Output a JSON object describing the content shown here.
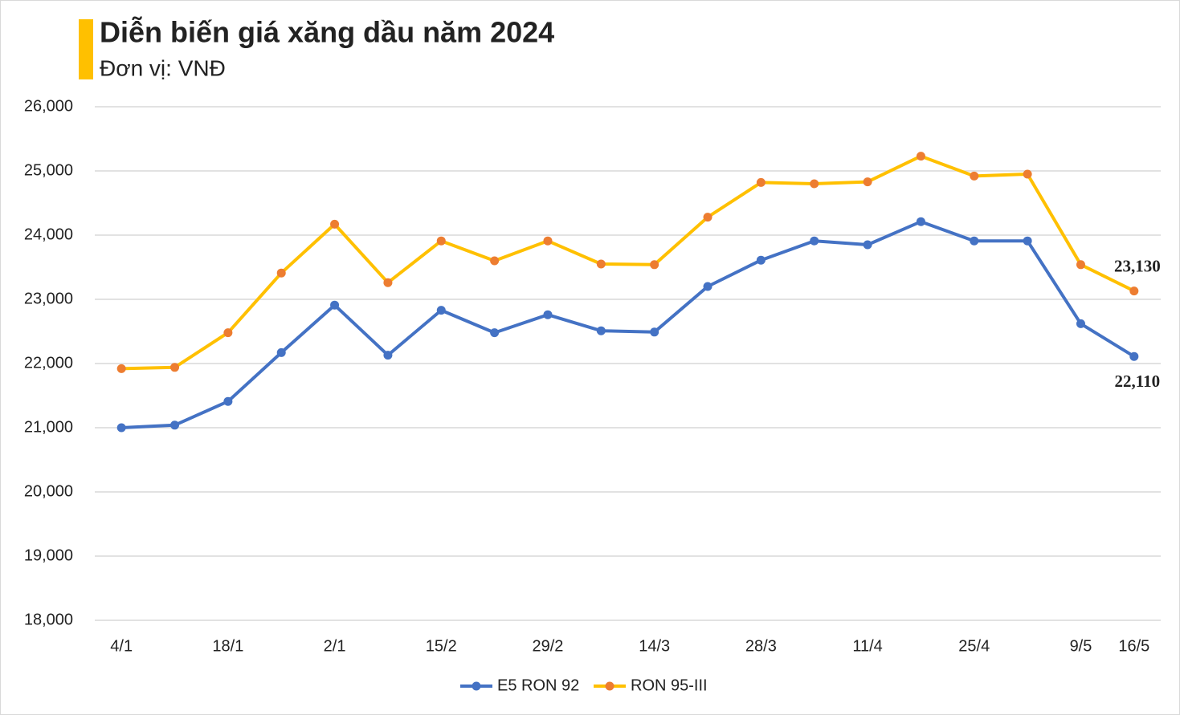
{
  "chart_data": {
    "type": "line",
    "title": "Diễn biến giá xăng dầu năm 2024",
    "subtitle": "Đơn vị: VNĐ",
    "categories": [
      "4/1",
      null,
      "18/1",
      null,
      "2/1",
      null,
      "15/2",
      null,
      "29/2",
      null,
      "14/3",
      null,
      "28/3",
      null,
      "11/4",
      null,
      "25/4",
      null,
      "9/5",
      "16/5"
    ],
    "series": [
      {
        "name": "E5 RON 92",
        "color": "#4472c4",
        "marker_color": "#4472c4",
        "values": [
          21000,
          21040,
          21410,
          22170,
          22910,
          22130,
          22830,
          22480,
          22760,
          22510,
          22490,
          23200,
          23610,
          23910,
          23850,
          24210,
          23910,
          23910,
          22620,
          22110
        ],
        "value_labels": [
          null,
          null,
          null,
          null,
          null,
          null,
          null,
          null,
          null,
          null,
          null,
          null,
          null,
          null,
          null,
          null,
          null,
          null,
          null,
          "22,110"
        ]
      },
      {
        "name": "RON 95-III",
        "color": "#ffc000",
        "marker_color": "#ed7d31",
        "values": [
          21920,
          21940,
          22480,
          23410,
          24170,
          23260,
          23910,
          23600,
          23910,
          23550,
          23540,
          24280,
          24820,
          24800,
          24830,
          25230,
          24920,
          24950,
          23540,
          23130
        ],
        "value_labels": [
          null,
          null,
          null,
          null,
          null,
          null,
          null,
          null,
          null,
          null,
          null,
          null,
          null,
          null,
          null,
          null,
          null,
          null,
          null,
          "23,130"
        ]
      }
    ],
    "ylim": [
      18000,
      26000
    ],
    "yticks": [
      {
        "value": 18000,
        "label": "18,000"
      },
      {
        "value": 19000,
        "label": "19,000"
      },
      {
        "value": 20000,
        "label": "20,000"
      },
      {
        "value": 21000,
        "label": "21,000"
      },
      {
        "value": 22000,
        "label": "22,000"
      },
      {
        "value": 23000,
        "label": "23,000"
      },
      {
        "value": 24000,
        "label": "24,000"
      },
      {
        "value": 25000,
        "label": "25,000"
      },
      {
        "value": 26000,
        "label": "26,000"
      }
    ],
    "grid": true,
    "legend": "bottom"
  }
}
